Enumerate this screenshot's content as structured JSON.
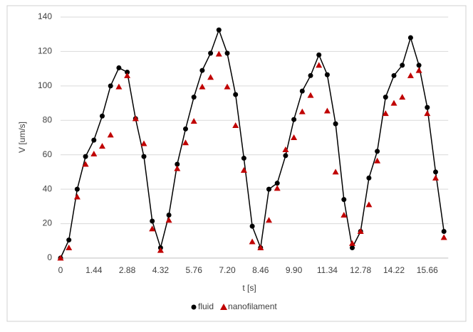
{
  "chart_data": {
    "type": "line",
    "xlabel": "t [s]",
    "ylabel": "V [um/s]",
    "categories": [
      "0",
      null,
      null,
      null,
      "1.44",
      null,
      null,
      null,
      "2.88",
      null,
      null,
      null,
      "4.32",
      null,
      null,
      null,
      "5.76",
      null,
      null,
      null,
      "7.20",
      null,
      null,
      null,
      "8.46",
      null,
      null,
      null,
      "9.90",
      null,
      null,
      null,
      "11.34",
      null,
      null,
      null,
      "12.78",
      null,
      null,
      null,
      "14.22",
      null,
      null,
      null,
      "15.66",
      null,
      null
    ],
    "series": [
      {
        "name": "fluid",
        "color": "#000000",
        "marker": "circle",
        "values": [
          0,
          10.5,
          40,
          59,
          68.5,
          82.5,
          100,
          110.5,
          108,
          81,
          59,
          21.5,
          6,
          25,
          54.5,
          75,
          93.5,
          109,
          119,
          132.5,
          119,
          95,
          58,
          18.5,
          6,
          40,
          43.5,
          59.5,
          80.5,
          97,
          106,
          118,
          106.5,
          78,
          34,
          6,
          15.5,
          46.5,
          62,
          93.5,
          106,
          112,
          128,
          112,
          87.5,
          50,
          15.5
        ]
      },
      {
        "name": "nanofilament",
        "color": "#c00000",
        "marker": "triangle",
        "values": [
          0,
          6,
          35.5,
          54.5,
          60.5,
          65,
          71.5,
          99.5,
          106,
          81,
          66.5,
          17,
          4.5,
          22,
          52,
          67,
          79.5,
          99.5,
          105,
          118.5,
          99.5,
          77,
          51,
          9.5,
          6,
          22,
          40.5,
          63,
          70,
          85,
          94.5,
          112,
          85.5,
          50,
          25,
          8.5,
          15.5,
          31,
          56.5,
          84,
          90,
          93.5,
          106,
          109,
          84,
          46.5,
          12
        ]
      }
    ],
    "ylim": [
      0,
      140
    ],
    "yticks": [
      0,
      20,
      40,
      60,
      80,
      100,
      120,
      140
    ],
    "grid": true,
    "legend": "bottom"
  }
}
